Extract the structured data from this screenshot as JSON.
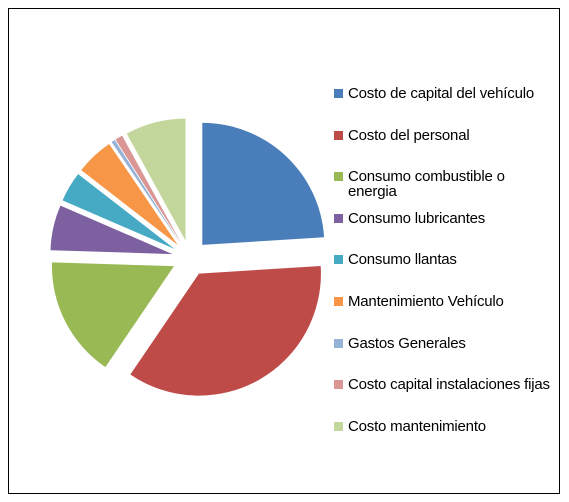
{
  "chart_data": {
    "type": "pie",
    "categories": [
      "Costo de capital del vehículo",
      "Costo del personal",
      "Consumo combustible o energia",
      "Consumo lubricantes",
      "Consumo llantas",
      "Mantenimiento Vehículo",
      "Gastos Generales",
      "Costo capital instalaciones fijas",
      "Costo mantenimiento"
    ],
    "values": [
      24,
      35.5,
      16,
      6,
      4,
      5,
      0.5,
      1,
      8
    ],
    "colors": [
      "#4a7ebb",
      "#be4b48",
      "#98b954",
      "#7d60a0",
      "#46aac5",
      "#f79646",
      "#95b3d7",
      "#d99694",
      "#c3d69b"
    ],
    "legend": "right",
    "exploded": true
  }
}
